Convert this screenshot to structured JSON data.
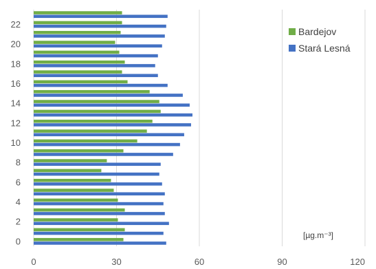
{
  "chart_data": {
    "type": "bar",
    "orientation": "horizontal",
    "categories": [
      0,
      1,
      2,
      3,
      4,
      5,
      6,
      7,
      8,
      9,
      10,
      11,
      12,
      13,
      14,
      15,
      16,
      17,
      18,
      19,
      20,
      21,
      22,
      23
    ],
    "y_tick_labels": [
      "0",
      "2",
      "4",
      "6",
      "8",
      "10",
      "12",
      "14",
      "16",
      "18",
      "20",
      "22"
    ],
    "x_tick_labels": [
      "0",
      "30",
      "60",
      "90",
      "120"
    ],
    "xlim": [
      0,
      120
    ],
    "grid": "vertical",
    "legend_position": "right",
    "unit_label": "[µg.m⁻³]",
    "colors": {
      "Bardejov": "#70AD47",
      "Stará Lesná": "#4472C4"
    },
    "series": [
      {
        "name": "Bardejov",
        "values": [
          32.5,
          33,
          30.5,
          33,
          30.5,
          29,
          28,
          24.5,
          26.5,
          32.5,
          37.5,
          41,
          43,
          46,
          45.5,
          42,
          34,
          32,
          33,
          31,
          29.5,
          31.5,
          32,
          32
        ]
      },
      {
        "name": "Stará Lesná",
        "values": [
          48,
          47,
          49,
          47.5,
          47,
          47.5,
          46.5,
          45.5,
          46,
          50.5,
          53,
          54.5,
          57,
          57.5,
          56.5,
          54,
          48.5,
          45,
          44,
          45,
          46.5,
          47.5,
          48,
          48.5
        ]
      }
    ]
  }
}
